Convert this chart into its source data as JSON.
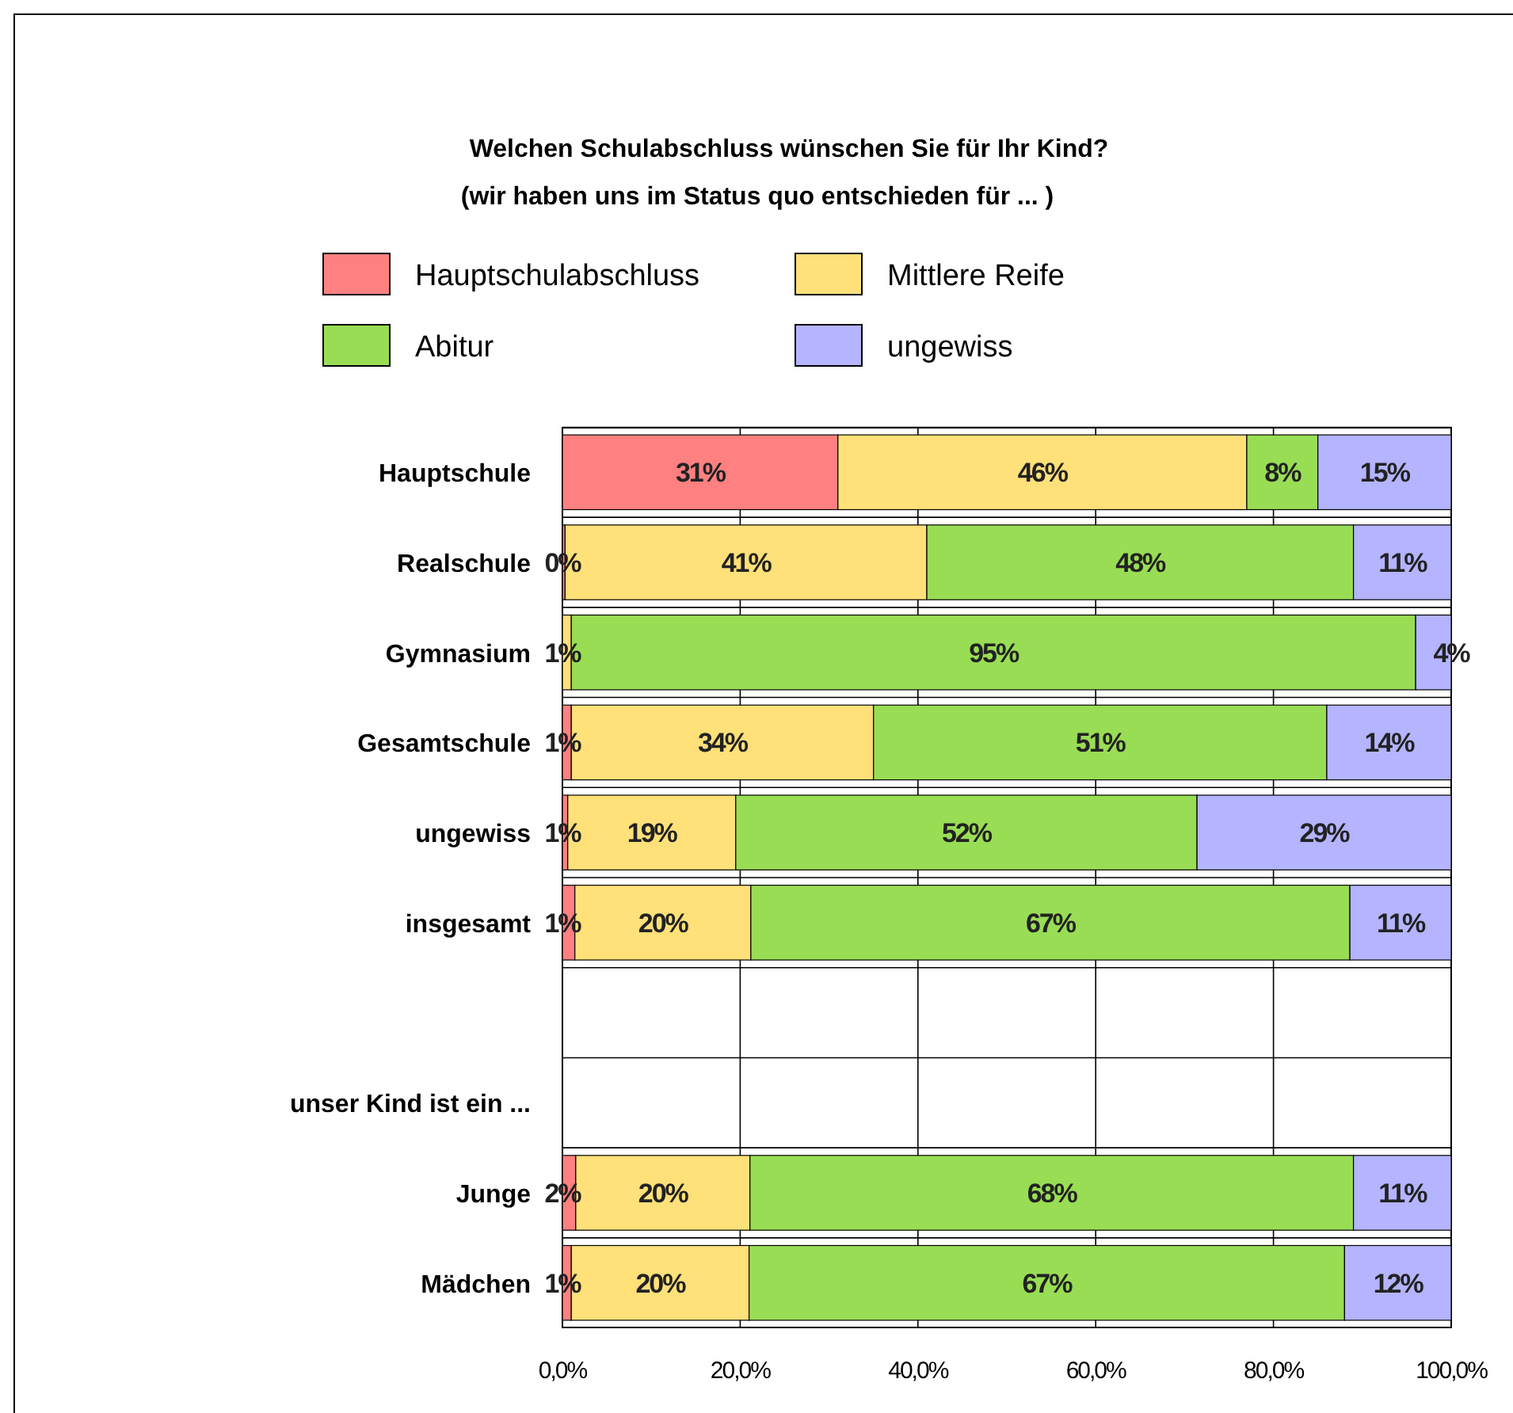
{
  "chart_data": {
    "type": "bar",
    "orientation": "horizontal",
    "stacked": true,
    "title": "Welchen Schulabschluss wünschen Sie für Ihr Kind?",
    "subtitle": "(wir haben uns im Status quo entschieden für ... )",
    "categories": [
      "Hauptschule",
      "Realschule",
      "Gymnasium",
      "Gesamtschule",
      "ungewiss",
      "insgesamt",
      null,
      "unser Kind ist ein ...",
      "Junge",
      "Mädchen"
    ],
    "series": [
      {
        "name": "Hauptschulabschluss",
        "color": "#ff8080",
        "values": [
          31,
          0.3,
          0,
          1,
          0.6,
          1.4,
          null,
          null,
          1.5,
          1
        ],
        "value_labels": [
          "31%",
          "0%",
          null,
          "1%",
          "1%",
          "1%",
          null,
          null,
          "2%",
          "1%"
        ]
      },
      {
        "name": "Mittlere Reife",
        "color": "#ffe079",
        "values": [
          46,
          40.7,
          1,
          34,
          18.9,
          19.8,
          null,
          null,
          19.6,
          20
        ],
        "value_labels": [
          "46%",
          "41%",
          "1%",
          "34%",
          "19%",
          "20%",
          null,
          null,
          "20%",
          "20%"
        ]
      },
      {
        "name": "Abitur",
        "color": "#99dd55",
        "values": [
          8,
          48,
          95,
          51,
          51.9,
          67.4,
          null,
          null,
          67.9,
          67
        ],
        "value_labels": [
          "8%",
          "48%",
          "95%",
          "51%",
          "52%",
          "67%",
          null,
          null,
          "68%",
          "67%"
        ]
      },
      {
        "name": "ungewiss",
        "color": "#b4b4ff",
        "values": [
          15,
          11,
          4,
          14,
          28.6,
          11.4,
          null,
          null,
          11,
          12
        ],
        "value_labels": [
          "15%",
          "11%",
          "4%",
          "14%",
          "29%",
          "11%",
          null,
          null,
          "11%",
          "12%"
        ]
      }
    ],
    "xlim": [
      0,
      100
    ],
    "xticks": [
      {
        "value": 0,
        "label": "0,0%"
      },
      {
        "value": 20,
        "label": "20,0%"
      },
      {
        "value": 40,
        "label": "40,0%"
      },
      {
        "value": 60,
        "label": "60,0%"
      },
      {
        "value": 80,
        "label": "80,0%"
      },
      {
        "value": 100,
        "label": "100,0%"
      }
    ],
    "grid": "x",
    "legend": "top"
  }
}
